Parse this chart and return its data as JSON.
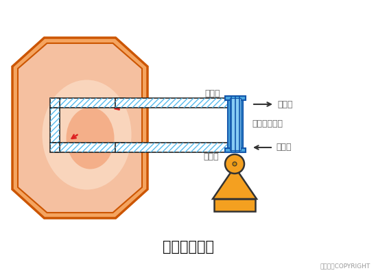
{
  "title": "水力循环搅拌",
  "copyright": "东方仿真COPYRIGHT",
  "label_hot_mud_out": "热泥出",
  "label_cold_mud_in": "冷泥进",
  "label_cold_water_out": "冷水出",
  "label_hot_water_out": "热水出",
  "label_heat_exchanger": "螺旋板换热器",
  "bg_color": "#ffffff",
  "tank_outer_color": "#f4a460",
  "tank_inner_color": "#f5c0a0",
  "pipe_blue": "#55bbee",
  "exchanger_blue": "#4da8e0",
  "exchanger_light": "#88ccf4",
  "pump_orange": "#f4a020",
  "arrow_red": "#dd2222",
  "pipe_border": "#222222",
  "tank_border": "#cc5500",
  "text_color": "#666666",
  "title_color": "#111111",
  "arrow_color": "#333333"
}
